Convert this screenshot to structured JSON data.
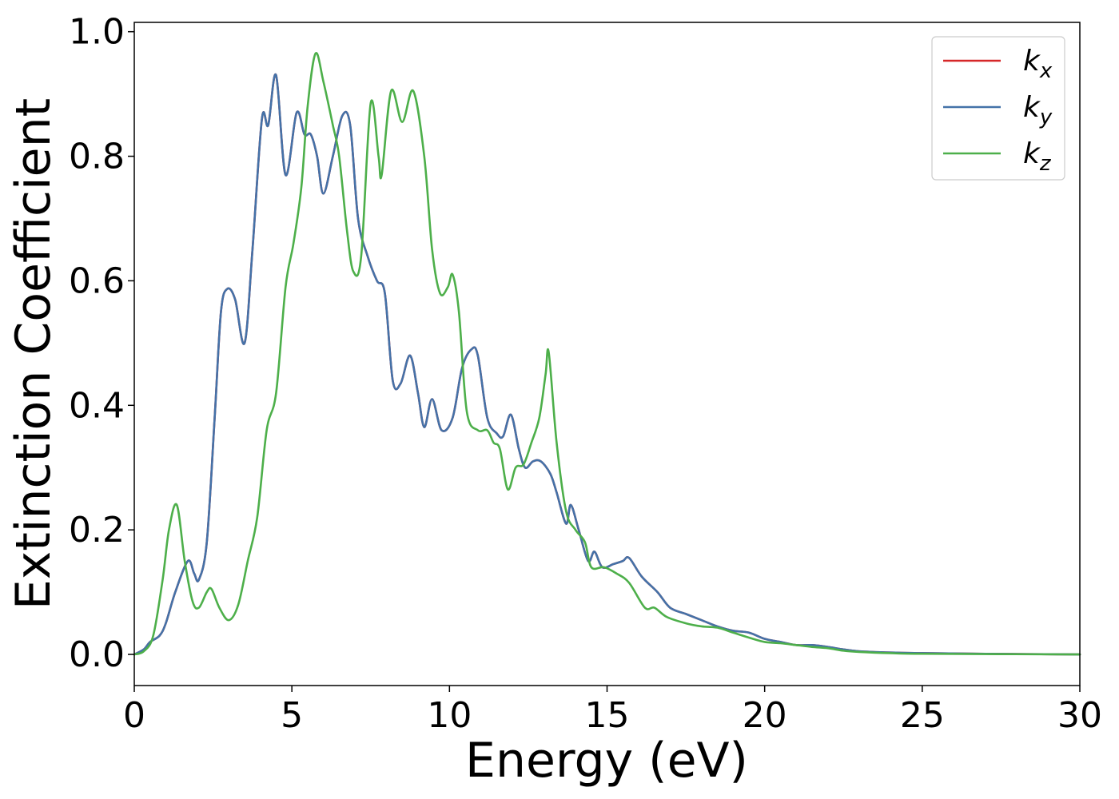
{
  "chart_data": {
    "type": "line",
    "xlabel": "Energy (eV)",
    "ylabel": "Extinction Coefficient",
    "xlim": [
      0,
      30
    ],
    "ylim": [
      -0.05,
      1.015
    ],
    "xticks": [
      0,
      5,
      10,
      15,
      20,
      25,
      30
    ],
    "xtick_labels": [
      "0",
      "5",
      "10",
      "15",
      "20",
      "25",
      "30"
    ],
    "yticks": [
      0.0,
      0.2,
      0.4,
      0.6,
      0.8,
      1.0
    ],
    "ytick_labels": [
      "0.0",
      "0.2",
      "0.4",
      "0.6",
      "0.8",
      "1.0"
    ],
    "grid": false,
    "legend_position": "top-right",
    "series": [
      {
        "name": "k",
        "sub": "x",
        "color": "#d62728",
        "points": [
          [
            0,
            0
          ],
          [
            0.3,
            0.008
          ],
          [
            0.5,
            0.02
          ],
          [
            0.8,
            0.03
          ],
          [
            1.0,
            0.05
          ],
          [
            1.3,
            0.1
          ],
          [
            1.7,
            0.15
          ],
          [
            1.9,
            0.13
          ],
          [
            2.05,
            0.12
          ],
          [
            2.3,
            0.18
          ],
          [
            2.55,
            0.38
          ],
          [
            2.75,
            0.55
          ],
          [
            2.95,
            0.587
          ],
          [
            3.2,
            0.57
          ],
          [
            3.5,
            0.5
          ],
          [
            3.75,
            0.65
          ],
          [
            4.05,
            0.86
          ],
          [
            4.25,
            0.85
          ],
          [
            4.5,
            0.93
          ],
          [
            4.8,
            0.77
          ],
          [
            5.15,
            0.87
          ],
          [
            5.4,
            0.835
          ],
          [
            5.6,
            0.835
          ],
          [
            5.8,
            0.8
          ],
          [
            6.0,
            0.74
          ],
          [
            6.3,
            0.8
          ],
          [
            6.6,
            0.865
          ],
          [
            6.85,
            0.85
          ],
          [
            7.1,
            0.7
          ],
          [
            7.4,
            0.64
          ],
          [
            7.7,
            0.6
          ],
          [
            7.95,
            0.58
          ],
          [
            8.2,
            0.44
          ],
          [
            8.45,
            0.435
          ],
          [
            8.75,
            0.48
          ],
          [
            9.0,
            0.42
          ],
          [
            9.2,
            0.365
          ],
          [
            9.45,
            0.41
          ],
          [
            9.75,
            0.36
          ],
          [
            10.1,
            0.38
          ],
          [
            10.4,
            0.46
          ],
          [
            10.7,
            0.49
          ],
          [
            10.9,
            0.48
          ],
          [
            11.2,
            0.38
          ],
          [
            11.5,
            0.355
          ],
          [
            11.7,
            0.35
          ],
          [
            11.95,
            0.385
          ],
          [
            12.2,
            0.33
          ],
          [
            12.4,
            0.3
          ],
          [
            12.65,
            0.31
          ],
          [
            12.9,
            0.31
          ],
          [
            13.2,
            0.29
          ],
          [
            13.4,
            0.26
          ],
          [
            13.7,
            0.21
          ],
          [
            13.85,
            0.24
          ],
          [
            14.1,
            0.2
          ],
          [
            14.4,
            0.15
          ],
          [
            14.6,
            0.165
          ],
          [
            14.85,
            0.14
          ],
          [
            15.2,
            0.145
          ],
          [
            15.5,
            0.15
          ],
          [
            15.7,
            0.155
          ],
          [
            16.1,
            0.125
          ],
          [
            16.6,
            0.1
          ],
          [
            17.0,
            0.075
          ],
          [
            17.5,
            0.065
          ],
          [
            18.0,
            0.055
          ],
          [
            18.5,
            0.045
          ],
          [
            19.0,
            0.038
          ],
          [
            19.5,
            0.035
          ],
          [
            20.0,
            0.025
          ],
          [
            20.5,
            0.02
          ],
          [
            21.0,
            0.015
          ],
          [
            21.5,
            0.015
          ],
          [
            22.0,
            0.012
          ],
          [
            22.5,
            0.008
          ],
          [
            23.0,
            0.005
          ],
          [
            24.0,
            0.003
          ],
          [
            25.0,
            0.002
          ],
          [
            27.0,
            0.001
          ],
          [
            30.0,
            0.0
          ]
        ]
      },
      {
        "name": "k",
        "sub": "y",
        "color": "#4472a8",
        "points": [
          [
            0,
            0
          ],
          [
            0.3,
            0.008
          ],
          [
            0.5,
            0.02
          ],
          [
            0.8,
            0.03
          ],
          [
            1.0,
            0.05
          ],
          [
            1.3,
            0.1
          ],
          [
            1.7,
            0.15
          ],
          [
            1.9,
            0.13
          ],
          [
            2.05,
            0.12
          ],
          [
            2.3,
            0.18
          ],
          [
            2.55,
            0.38
          ],
          [
            2.75,
            0.55
          ],
          [
            2.95,
            0.587
          ],
          [
            3.2,
            0.57
          ],
          [
            3.5,
            0.5
          ],
          [
            3.75,
            0.65
          ],
          [
            4.05,
            0.86
          ],
          [
            4.25,
            0.85
          ],
          [
            4.5,
            0.93
          ],
          [
            4.8,
            0.77
          ],
          [
            5.15,
            0.87
          ],
          [
            5.4,
            0.835
          ],
          [
            5.6,
            0.835
          ],
          [
            5.8,
            0.8
          ],
          [
            6.0,
            0.74
          ],
          [
            6.3,
            0.8
          ],
          [
            6.6,
            0.865
          ],
          [
            6.85,
            0.85
          ],
          [
            7.1,
            0.7
          ],
          [
            7.4,
            0.64
          ],
          [
            7.7,
            0.6
          ],
          [
            7.95,
            0.58
          ],
          [
            8.2,
            0.44
          ],
          [
            8.45,
            0.435
          ],
          [
            8.75,
            0.48
          ],
          [
            9.0,
            0.42
          ],
          [
            9.2,
            0.365
          ],
          [
            9.45,
            0.41
          ],
          [
            9.75,
            0.36
          ],
          [
            10.1,
            0.38
          ],
          [
            10.4,
            0.46
          ],
          [
            10.7,
            0.49
          ],
          [
            10.9,
            0.48
          ],
          [
            11.2,
            0.38
          ],
          [
            11.5,
            0.355
          ],
          [
            11.7,
            0.35
          ],
          [
            11.95,
            0.385
          ],
          [
            12.2,
            0.33
          ],
          [
            12.4,
            0.3
          ],
          [
            12.65,
            0.31
          ],
          [
            12.9,
            0.31
          ],
          [
            13.2,
            0.29
          ],
          [
            13.4,
            0.26
          ],
          [
            13.7,
            0.21
          ],
          [
            13.85,
            0.24
          ],
          [
            14.1,
            0.2
          ],
          [
            14.4,
            0.15
          ],
          [
            14.6,
            0.165
          ],
          [
            14.85,
            0.14
          ],
          [
            15.2,
            0.145
          ],
          [
            15.5,
            0.15
          ],
          [
            15.7,
            0.155
          ],
          [
            16.1,
            0.125
          ],
          [
            16.6,
            0.1
          ],
          [
            17.0,
            0.075
          ],
          [
            17.5,
            0.065
          ],
          [
            18.0,
            0.055
          ],
          [
            18.5,
            0.045
          ],
          [
            19.0,
            0.038
          ],
          [
            19.5,
            0.035
          ],
          [
            20.0,
            0.025
          ],
          [
            20.5,
            0.02
          ],
          [
            21.0,
            0.015
          ],
          [
            21.5,
            0.015
          ],
          [
            22.0,
            0.012
          ],
          [
            22.5,
            0.008
          ],
          [
            23.0,
            0.005
          ],
          [
            24.0,
            0.003
          ],
          [
            25.0,
            0.002
          ],
          [
            27.0,
            0.001
          ],
          [
            30.0,
            0.0
          ]
        ]
      },
      {
        "name": "k",
        "sub": "z",
        "color": "#4daf4a",
        "points": [
          [
            0,
            0
          ],
          [
            0.3,
            0.005
          ],
          [
            0.6,
            0.03
          ],
          [
            0.9,
            0.12
          ],
          [
            1.1,
            0.2
          ],
          [
            1.35,
            0.24
          ],
          [
            1.6,
            0.15
          ],
          [
            1.85,
            0.085
          ],
          [
            2.05,
            0.075
          ],
          [
            2.3,
            0.1
          ],
          [
            2.45,
            0.105
          ],
          [
            2.7,
            0.075
          ],
          [
            3.0,
            0.055
          ],
          [
            3.3,
            0.08
          ],
          [
            3.6,
            0.15
          ],
          [
            3.9,
            0.22
          ],
          [
            4.2,
            0.36
          ],
          [
            4.5,
            0.42
          ],
          [
            4.8,
            0.59
          ],
          [
            5.05,
            0.66
          ],
          [
            5.3,
            0.75
          ],
          [
            5.5,
            0.88
          ],
          [
            5.75,
            0.965
          ],
          [
            6.0,
            0.92
          ],
          [
            6.3,
            0.85
          ],
          [
            6.5,
            0.8
          ],
          [
            6.75,
            0.68
          ],
          [
            6.95,
            0.615
          ],
          [
            7.2,
            0.64
          ],
          [
            7.5,
            0.885
          ],
          [
            7.75,
            0.8
          ],
          [
            7.85,
            0.77
          ],
          [
            8.15,
            0.905
          ],
          [
            8.5,
            0.855
          ],
          [
            8.85,
            0.905
          ],
          [
            9.2,
            0.8
          ],
          [
            9.45,
            0.65
          ],
          [
            9.7,
            0.58
          ],
          [
            9.95,
            0.59
          ],
          [
            10.1,
            0.61
          ],
          [
            10.3,
            0.55
          ],
          [
            10.55,
            0.39
          ],
          [
            10.9,
            0.36
          ],
          [
            11.2,
            0.36
          ],
          [
            11.4,
            0.34
          ],
          [
            11.6,
            0.33
          ],
          [
            11.85,
            0.265
          ],
          [
            12.1,
            0.3
          ],
          [
            12.35,
            0.305
          ],
          [
            12.6,
            0.34
          ],
          [
            12.85,
            0.38
          ],
          [
            13.05,
            0.45
          ],
          [
            13.15,
            0.485
          ],
          [
            13.4,
            0.34
          ],
          [
            13.7,
            0.23
          ],
          [
            14.0,
            0.2
          ],
          [
            14.3,
            0.18
          ],
          [
            14.5,
            0.14
          ],
          [
            14.9,
            0.14
          ],
          [
            15.3,
            0.13
          ],
          [
            15.7,
            0.115
          ],
          [
            16.2,
            0.075
          ],
          [
            16.5,
            0.075
          ],
          [
            16.9,
            0.06
          ],
          [
            17.5,
            0.05
          ],
          [
            18.0,
            0.045
          ],
          [
            18.5,
            0.043
          ],
          [
            19.0,
            0.035
          ],
          [
            19.5,
            0.027
          ],
          [
            20.0,
            0.02
          ],
          [
            20.5,
            0.018
          ],
          [
            21.0,
            0.015
          ],
          [
            21.5,
            0.012
          ],
          [
            22.0,
            0.01
          ],
          [
            22.5,
            0.006
          ],
          [
            23.0,
            0.004
          ],
          [
            24.0,
            0.002
          ],
          [
            25.0,
            0.001
          ],
          [
            30.0,
            0.0
          ]
        ]
      }
    ]
  }
}
